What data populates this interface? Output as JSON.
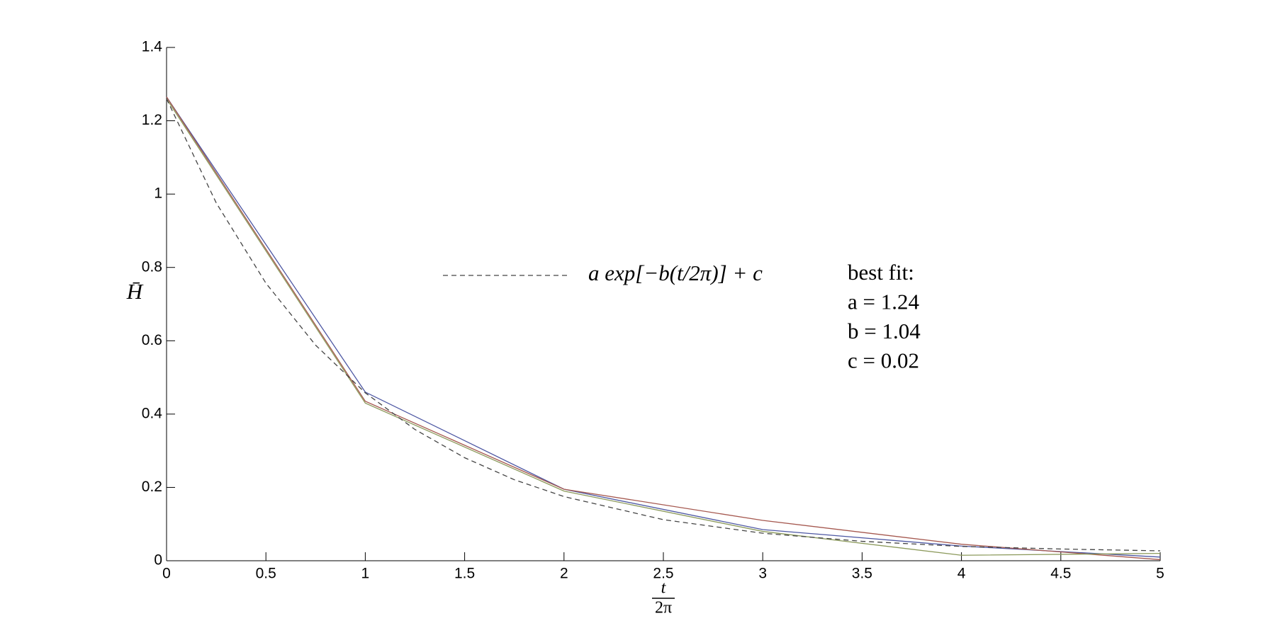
{
  "chart_data": {
    "type": "line",
    "xlabel": {
      "numerator": "t",
      "denominator": "2π"
    },
    "ylabel": "H̄",
    "xlim": [
      0,
      5
    ],
    "ylim": [
      0,
      1.4
    ],
    "xticks": [
      0,
      0.5,
      1,
      1.5,
      2,
      2.5,
      3,
      3.5,
      4,
      4.5,
      5
    ],
    "yticks": [
      0,
      0.2,
      0.4,
      0.6,
      0.8,
      1,
      1.2,
      1.4
    ],
    "series": [
      {
        "color": "#4d57a3",
        "style": "solid",
        "x": [
          0,
          1,
          2,
          3,
          4,
          5
        ],
        "values": [
          1.265,
          0.46,
          0.195,
          0.085,
          0.04,
          0.01
        ]
      },
      {
        "color": "#a5584f",
        "style": "solid",
        "x": [
          0,
          1,
          2,
          3,
          4,
          5
        ],
        "values": [
          1.265,
          0.435,
          0.195,
          0.11,
          0.045,
          0.003
        ]
      },
      {
        "color": "#8c9a5c",
        "style": "solid",
        "x": [
          0,
          1,
          2,
          3,
          4,
          5
        ],
        "values": [
          1.26,
          0.43,
          0.19,
          0.08,
          0.015,
          0.02
        ]
      },
      {
        "name": "a exp[−b(t/2π)] + c",
        "color": "#444444",
        "style": "dashed",
        "x": [
          0,
          0.25,
          0.5,
          0.75,
          1,
          1.25,
          1.5,
          1.75,
          2,
          2.5,
          3,
          3.5,
          4,
          4.5,
          5
        ],
        "values": [
          1.26,
          0.976,
          0.757,
          0.588,
          0.458,
          0.358,
          0.281,
          0.221,
          0.175,
          0.112,
          0.075,
          0.053,
          0.039,
          0.032,
          0.027
        ]
      }
    ],
    "annotations": [
      "best fit:",
      "a = 1.24",
      "b = 1.04",
      "c = 0.02"
    ]
  }
}
